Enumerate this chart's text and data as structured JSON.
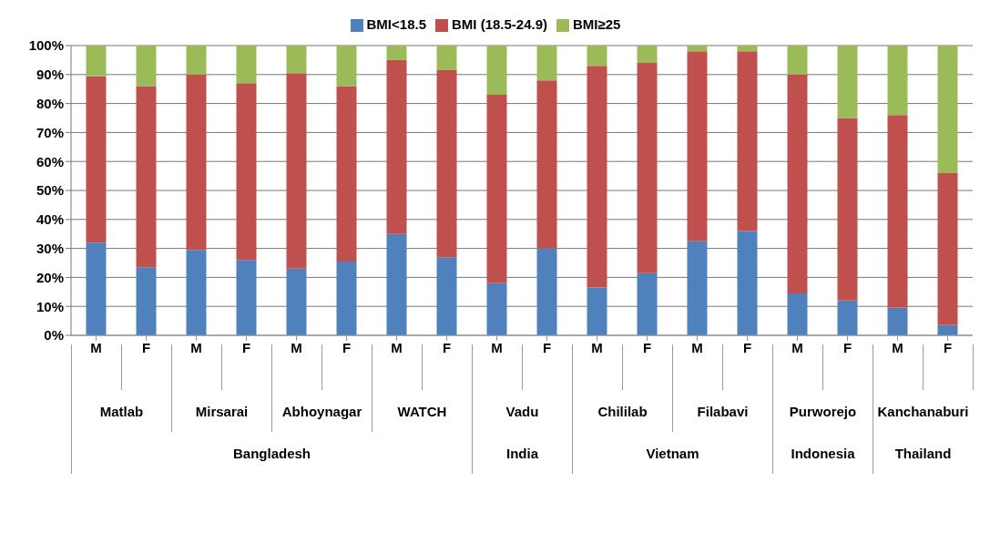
{
  "chart_data": {
    "type": "bar",
    "stacked": true,
    "categories": [
      "M",
      "F",
      "M",
      "F",
      "M",
      "F",
      "M",
      "F",
      "M",
      "F",
      "M",
      "F",
      "M",
      "F",
      "M",
      "F",
      "M",
      "F"
    ],
    "series": [
      {
        "name": "BMI<18.5",
        "color": "#4f81bd",
        "values": [
          32,
          23.5,
          29.5,
          26,
          23,
          25.5,
          35,
          27,
          18,
          30,
          16.5,
          21.5,
          32.5,
          36,
          14.5,
          12,
          9.5,
          3.5
        ]
      },
      {
        "name": "BMI (18.5-24.9)",
        "color": "#c0504d",
        "values": [
          57.5,
          62.5,
          60.5,
          61,
          67.5,
          60.5,
          60,
          64.5,
          65,
          58,
          76.5,
          72.5,
          65.5,
          62,
          75.5,
          63,
          66.5,
          52.5
        ]
      },
      {
        "name": "BMI≥25",
        "color": "#9bbb59",
        "values": [
          10.5,
          14,
          10,
          13,
          9.5,
          14,
          5,
          8.5,
          17,
          12,
          7,
          6,
          2,
          2,
          10,
          25,
          24,
          44
        ]
      }
    ],
    "ylim": [
      0,
      100
    ],
    "yticks": [
      {
        "value": 0,
        "label": "0%"
      },
      {
        "value": 10,
        "label": "10%"
      },
      {
        "value": 20,
        "label": "20%"
      },
      {
        "value": 30,
        "label": "30%"
      },
      {
        "value": 40,
        "label": "40%"
      },
      {
        "value": 50,
        "label": "50%"
      },
      {
        "value": 60,
        "label": "60%"
      },
      {
        "value": 70,
        "label": "70%"
      },
      {
        "value": 80,
        "label": "80%"
      },
      {
        "value": 90,
        "label": "90%"
      },
      {
        "value": 100,
        "label": "100%"
      }
    ],
    "grid": "y",
    "legend": "top",
    "annotations": [
      "Matlab",
      "Mirsarai",
      "Abhoynagar",
      "WATCH",
      "Vadu",
      "Chililab",
      "Filabavi",
      "Purworejo",
      "Kanchanaburi",
      "Bangladesh",
      "India",
      "Vietnam",
      "Indonesia",
      "Thailand"
    ]
  }
}
